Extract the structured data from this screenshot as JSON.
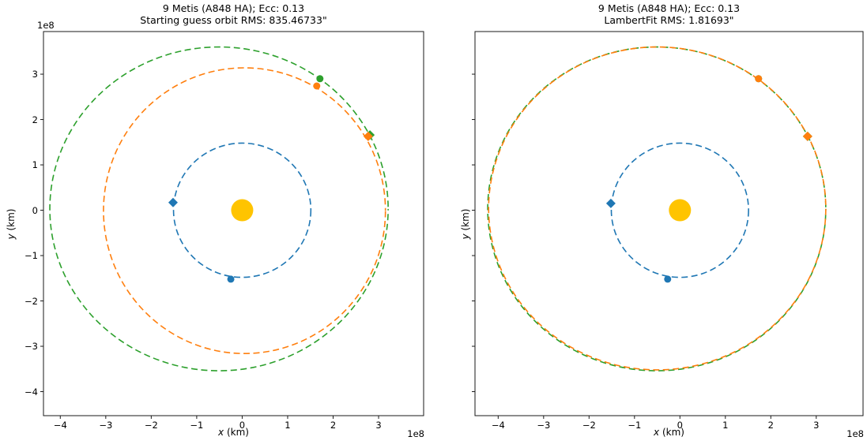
{
  "figure": {
    "background": "#ffffff"
  },
  "colors": {
    "earth_orbit": "#1f77b4",
    "orange_orbit": "#ff7f0e",
    "true_orbit": "#2ca02c",
    "sun": "#ffc400",
    "axis": "#1a1a1a",
    "text": "#000000"
  },
  "chart_data": [
    {
      "type": "line",
      "title": "9 Metis (A848 HA); Ecc: 0.13",
      "subtitle": "Starting guess orbit RMS: 835.46733\"",
      "xlabel_var": "x",
      "xlabel_unit": " (km)",
      "ylabel_var": "y",
      "ylabel_unit": " (km)",
      "x_offset_text": "1e8",
      "y_offset_text": "1e8",
      "unit_scale": "1e8 km per axis unit",
      "xlim": [
        -4.37,
        3.99
      ],
      "ylim": [
        -4.53,
        3.94
      ],
      "x_tick_values": [
        -4,
        -3,
        -2,
        -1,
        0,
        1,
        2,
        3
      ],
      "x_tick_labels": [
        "−4",
        "−3",
        "−2",
        "−1",
        "0",
        "1",
        "2",
        "3"
      ],
      "y_tick_values": [
        3,
        2,
        1,
        0,
        -1,
        -2,
        -3,
        -4
      ],
      "y_tick_labels": [
        "3",
        "2",
        "1",
        "0",
        "−1",
        "−2",
        "−3",
        "−4"
      ],
      "show_y_tick_labels": true,
      "grid": false,
      "legend": null,
      "sun": {
        "name": "sun",
        "x": 0,
        "y": 0,
        "radius_px": 14,
        "color": "#ffc400"
      },
      "orbits": [
        {
          "name": "earth-orbit",
          "color": "#1f77b4",
          "cx": 0,
          "cy": 0,
          "rx": 1.51,
          "ry": 1.48
        },
        {
          "name": "true-orbit",
          "color": "#2ca02c",
          "cx": -0.51,
          "cy": 0.03,
          "rx": 3.72,
          "ry": 3.57
        },
        {
          "name": "starting-guess-orbit",
          "color": "#ff7f0e",
          "cx": 0.05,
          "cy": -0.01,
          "rx": 3.1,
          "ry": 3.15
        }
      ],
      "markers": [
        {
          "name": "earth-obs1-marker",
          "shape": "diamond",
          "color": "#1f77b4",
          "x": -1.52,
          "y": 0.17
        },
        {
          "name": "earth-obs2-marker",
          "shape": "circle",
          "color": "#1f77b4",
          "x": -0.25,
          "y": -1.52
        },
        {
          "name": "true-orbit-obs1-marker",
          "shape": "circle",
          "color": "#2ca02c",
          "x": 1.71,
          "y": 2.9
        },
        {
          "name": "guess-orbit-obs1-marker",
          "shape": "circle",
          "color": "#ff7f0e",
          "x": 1.64,
          "y": 2.74
        },
        {
          "name": "true-orbit-obs2-marker",
          "shape": "diamond",
          "color": "#2ca02c",
          "x": 2.81,
          "y": 1.66
        },
        {
          "name": "guess-orbit-obs2-marker",
          "shape": "diamond",
          "color": "#ff7f0e",
          "x": 2.77,
          "y": 1.63
        }
      ]
    },
    {
      "type": "line",
      "title": "9 Metis (A848 HA); Ecc: 0.13",
      "subtitle": "LambertFit RMS: 1.81693\"",
      "xlabel_var": "x",
      "xlabel_unit": " (km)",
      "ylabel_var": "y",
      "ylabel_unit": " (km)",
      "x_offset_text": "1e8",
      "y_offset_text": "",
      "unit_scale": "1e8 km per axis unit",
      "xlim": [
        -4.51,
        4.03
      ],
      "ylim": [
        -4.53,
        3.94
      ],
      "x_tick_values": [
        -4,
        -3,
        -2,
        -1,
        0,
        1,
        2,
        3
      ],
      "x_tick_labels": [
        "−4",
        "−3",
        "−2",
        "−1",
        "0",
        "1",
        "2",
        "3"
      ],
      "y_tick_values": [
        3,
        2,
        1,
        0,
        -1,
        -2,
        -3,
        -4
      ],
      "y_tick_labels": [],
      "show_y_tick_labels": false,
      "grid": false,
      "legend": null,
      "sun": {
        "name": "sun",
        "x": 0,
        "y": 0,
        "radius_px": 14,
        "color": "#ffc400"
      },
      "orbits": [
        {
          "name": "earth-orbit",
          "color": "#1f77b4",
          "cx": 0,
          "cy": 0,
          "rx": 1.51,
          "ry": 1.48
        },
        {
          "name": "true-orbit",
          "color": "#2ca02c",
          "cx": -0.51,
          "cy": 0.03,
          "rx": 3.72,
          "ry": 3.57
        },
        {
          "name": "lambert-fit-orbit",
          "color": "#ff7f0e",
          "cx": -0.5,
          "cy": 0.04,
          "rx": 3.71,
          "ry": 3.56
        }
      ],
      "markers": [
        {
          "name": "earth-obs1-marker",
          "shape": "diamond",
          "color": "#1f77b4",
          "x": -1.52,
          "y": 0.15
        },
        {
          "name": "earth-obs2-marker",
          "shape": "circle",
          "color": "#1f77b4",
          "x": -0.27,
          "y": -1.52
        },
        {
          "name": "true-orbit-obs1-marker",
          "shape": "circle",
          "color": "#2ca02c",
          "x": 1.73,
          "y": 2.9
        },
        {
          "name": "fit-orbit-obs1-marker",
          "shape": "circle",
          "color": "#ff7f0e",
          "x": 1.73,
          "y": 2.9
        },
        {
          "name": "true-orbit-obs2-marker",
          "shape": "diamond",
          "color": "#2ca02c",
          "x": 2.81,
          "y": 1.63
        },
        {
          "name": "fit-orbit-obs2-marker",
          "shape": "diamond",
          "color": "#ff7f0e",
          "x": 2.81,
          "y": 1.63
        }
      ]
    }
  ]
}
